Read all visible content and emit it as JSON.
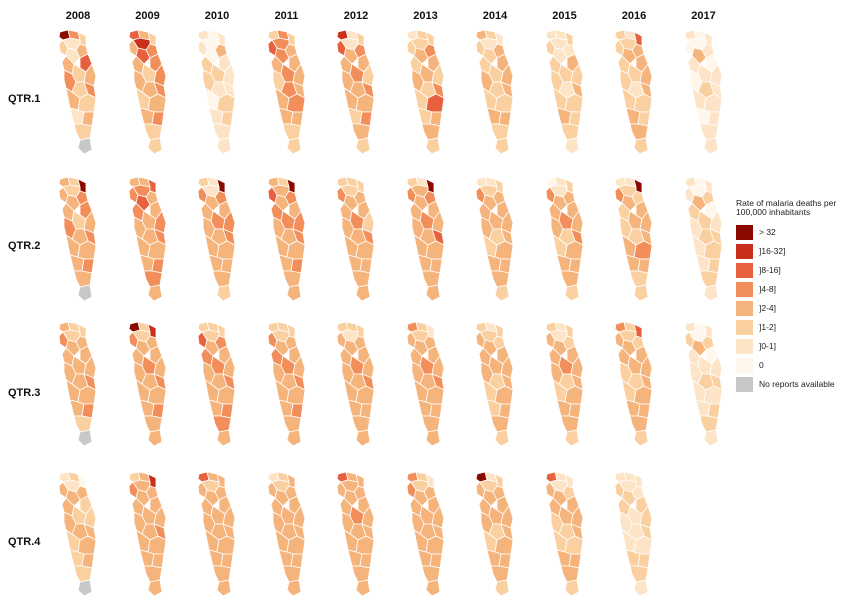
{
  "years": [
    "2008",
    "2009",
    "2010",
    "2011",
    "2012",
    "2013",
    "2014",
    "2015",
    "2016",
    "2017"
  ],
  "quarters": [
    "QTR.1",
    "QTR.2",
    "QTR.3",
    "QTR.4"
  ],
  "legend": {
    "title": "Rate of malaria deaths per 100,000 inhabitants",
    "classes": [
      {
        "label": "> 32",
        "color": "#8b0a00"
      },
      {
        "label": "]16-32]",
        "color": "#c9301c"
      },
      {
        "label": "]8-16]",
        "color": "#e8613e"
      },
      {
        "label": "]4-8]",
        "color": "#f28e5a"
      },
      {
        "label": "]2-4]",
        "color": "#f6b47d"
      },
      {
        "label": "]1-2]",
        "color": "#fad0a0"
      },
      {
        "label": "]0-1]",
        "color": "#fde4c6"
      },
      {
        "label": "0",
        "color": "#fff6ec"
      },
      {
        "label": "No reports available",
        "color": "#c8c8c8"
      }
    ]
  },
  "maps": {
    "QTR.1": {
      "2008": [
        0,
        3,
        5,
        6,
        4,
        5,
        6,
        2,
        4,
        5,
        4,
        3,
        5,
        3,
        4,
        5,
        6,
        4,
        5,
        8
      ],
      "2009": [
        2,
        4,
        5,
        1,
        3,
        4,
        2,
        3,
        4,
        5,
        3,
        4,
        4,
        3,
        5,
        4,
        4,
        3,
        5,
        5
      ],
      "2010": [
        6,
        7,
        6,
        7,
        4,
        6,
        7,
        6,
        5,
        5,
        6,
        5,
        6,
        6,
        7,
        5,
        6,
        5,
        6,
        6
      ],
      "2011": [
        5,
        3,
        5,
        3,
        4,
        2,
        3,
        4,
        4,
        3,
        4,
        5,
        3,
        4,
        4,
        3,
        4,
        4,
        5,
        5
      ],
      "2012": [
        1,
        6,
        5,
        6,
        3,
        2,
        4,
        4,
        4,
        3,
        5,
        4,
        4,
        3,
        4,
        4,
        5,
        3,
        4,
        5
      ],
      "2013": [
        6,
        5,
        5,
        5,
        3,
        5,
        4,
        4,
        5,
        4,
        5,
        4,
        5,
        3,
        5,
        2,
        5,
        4,
        4,
        5
      ],
      "2014": [
        4,
        5,
        6,
        6,
        4,
        5,
        5,
        4,
        5,
        5,
        4,
        4,
        5,
        4,
        5,
        5,
        4,
        4,
        5,
        5
      ],
      "2015": [
        6,
        6,
        5,
        6,
        6,
        5,
        6,
        4,
        5,
        5,
        5,
        5,
        6,
        4,
        5,
        5,
        4,
        5,
        5,
        6
      ],
      "2016": [
        5,
        6,
        2,
        5,
        4,
        5,
        4,
        4,
        5,
        5,
        4,
        5,
        6,
        4,
        5,
        5,
        4,
        5,
        4,
        5
      ],
      "2017": [
        6,
        7,
        6,
        7,
        6,
        7,
        4,
        7,
        6,
        6,
        6,
        7,
        5,
        6,
        6,
        6,
        7,
        6,
        6,
        6
      ]
    },
    "QTR.2": {
      "2008": [
        4,
        5,
        0,
        5,
        3,
        4,
        4,
        3,
        4,
        5,
        4,
        3,
        4,
        3,
        4,
        4,
        4,
        3,
        4,
        8
      ],
      "2009": [
        4,
        4,
        2,
        3,
        4,
        3,
        2,
        4,
        3,
        4,
        3,
        4,
        4,
        3,
        4,
        4,
        4,
        3,
        3,
        4
      ],
      "2010": [
        5,
        6,
        0,
        6,
        3,
        3,
        4,
        4,
        4,
        3,
        3,
        4,
        4,
        3,
        4,
        4,
        4,
        4,
        4,
        5
      ],
      "2011": [
        4,
        5,
        0,
        4,
        3,
        2,
        4,
        4,
        3,
        3,
        3,
        4,
        4,
        3,
        4,
        4,
        4,
        3,
        4,
        4
      ],
      "2012": [
        5,
        5,
        5,
        5,
        4,
        3,
        4,
        4,
        4,
        3,
        5,
        4,
        4,
        3,
        4,
        4,
        4,
        4,
        4,
        4
      ],
      "2013": [
        5,
        6,
        0,
        4,
        3,
        3,
        4,
        4,
        4,
        3,
        4,
        4,
        4,
        2,
        4,
        4,
        4,
        4,
        4,
        4
      ],
      "2014": [
        6,
        6,
        5,
        5,
        4,
        3,
        4,
        4,
        4,
        4,
        4,
        4,
        5,
        4,
        5,
        4,
        4,
        4,
        4,
        5
      ],
      "2015": [
        7,
        6,
        5,
        6,
        4,
        3,
        4,
        4,
        4,
        3,
        4,
        4,
        5,
        3,
        5,
        4,
        4,
        4,
        4,
        5
      ],
      "2016": [
        6,
        6,
        0,
        5,
        5,
        3,
        4,
        4,
        5,
        4,
        4,
        5,
        5,
        4,
        4,
        3,
        4,
        4,
        5,
        5
      ],
      "2017": [
        6,
        7,
        6,
        7,
        5,
        6,
        4,
        7,
        5,
        5,
        6,
        6,
        5,
        5,
        6,
        5,
        6,
        5,
        5,
        6
      ]
    },
    "QTR.3": {
      "2008": [
        4,
        5,
        5,
        5,
        4,
        3,
        4,
        4,
        4,
        4,
        4,
        4,
        4,
        3,
        4,
        4,
        4,
        3,
        5,
        8
      ],
      "2009": [
        0,
        5,
        1,
        5,
        4,
        3,
        4,
        4,
        4,
        3,
        4,
        4,
        4,
        3,
        4,
        4,
        4,
        3,
        4,
        4
      ],
      "2010": [
        5,
        5,
        5,
        5,
        3,
        2,
        4,
        4,
        3,
        3,
        4,
        4,
        4,
        3,
        4,
        4,
        4,
        3,
        3,
        4
      ],
      "2011": [
        5,
        5,
        5,
        5,
        4,
        3,
        4,
        4,
        3,
        3,
        4,
        4,
        4,
        3,
        4,
        4,
        4,
        3,
        4,
        4
      ],
      "2012": [
        5,
        5,
        5,
        6,
        4,
        4,
        4,
        4,
        4,
        3,
        4,
        4,
        4,
        3,
        4,
        4,
        4,
        4,
        4,
        4
      ],
      "2013": [
        3,
        5,
        6,
        5,
        4,
        4,
        4,
        4,
        4,
        3,
        4,
        4,
        4,
        3,
        4,
        4,
        4,
        4,
        4,
        4
      ],
      "2014": [
        5,
        6,
        5,
        5,
        5,
        4,
        4,
        4,
        4,
        4,
        4,
        4,
        5,
        4,
        5,
        4,
        5,
        4,
        4,
        5
      ],
      "2015": [
        5,
        6,
        5,
        6,
        5,
        4,
        4,
        4,
        4,
        3,
        4,
        4,
        5,
        4,
        5,
        4,
        4,
        4,
        4,
        5
      ],
      "2016": [
        3,
        5,
        2,
        5,
        5,
        4,
        4,
        4,
        4,
        4,
        4,
        5,
        5,
        4,
        5,
        4,
        4,
        4,
        4,
        5
      ],
      "2017": [
        6,
        7,
        6,
        7,
        5,
        5,
        4,
        7,
        6,
        6,
        6,
        6,
        5,
        5,
        6,
        6,
        6,
        5,
        5,
        6
      ]
    },
    "QTR.4": {
      "2008": [
        6,
        5,
        7,
        6,
        4,
        4,
        4,
        5,
        4,
        5,
        5,
        4,
        4,
        4,
        5,
        4,
        5,
        4,
        5,
        8
      ],
      "2009": [
        5,
        4,
        1,
        4,
        4,
        3,
        4,
        4,
        4,
        4,
        4,
        4,
        4,
        3,
        4,
        4,
        4,
        4,
        4,
        4
      ],
      "2010": [
        2,
        4,
        4,
        5,
        4,
        4,
        4,
        4,
        4,
        4,
        4,
        4,
        4,
        4,
        4,
        4,
        4,
        4,
        4,
        4
      ],
      "2011": [
        6,
        5,
        4,
        5,
        4,
        4,
        4,
        4,
        4,
        4,
        4,
        4,
        4,
        4,
        4,
        4,
        4,
        4,
        4,
        4
      ],
      "2012": [
        2,
        4,
        4,
        4,
        4,
        4,
        4,
        4,
        4,
        3,
        4,
        4,
        4,
        4,
        4,
        4,
        4,
        4,
        4,
        4
      ],
      "2013": [
        3,
        5,
        6,
        5,
        4,
        3,
        4,
        4,
        4,
        4,
        4,
        4,
        4,
        4,
        4,
        4,
        4,
        4,
        4,
        4
      ],
      "2014": [
        0,
        6,
        5,
        5,
        4,
        4,
        4,
        4,
        4,
        4,
        4,
        4,
        5,
        4,
        5,
        4,
        4,
        4,
        4,
        5
      ],
      "2015": [
        2,
        6,
        6,
        6,
        5,
        4,
        4,
        4,
        4,
        4,
        4,
        5,
        5,
        4,
        5,
        5,
        4,
        4,
        4,
        5
      ],
      "2016": [
        6,
        6,
        6,
        6,
        6,
        5,
        5,
        5,
        5,
        6,
        5,
        6,
        6,
        5,
        6,
        6,
        5,
        5,
        5,
        6
      ],
      "2017": []
    }
  }
}
